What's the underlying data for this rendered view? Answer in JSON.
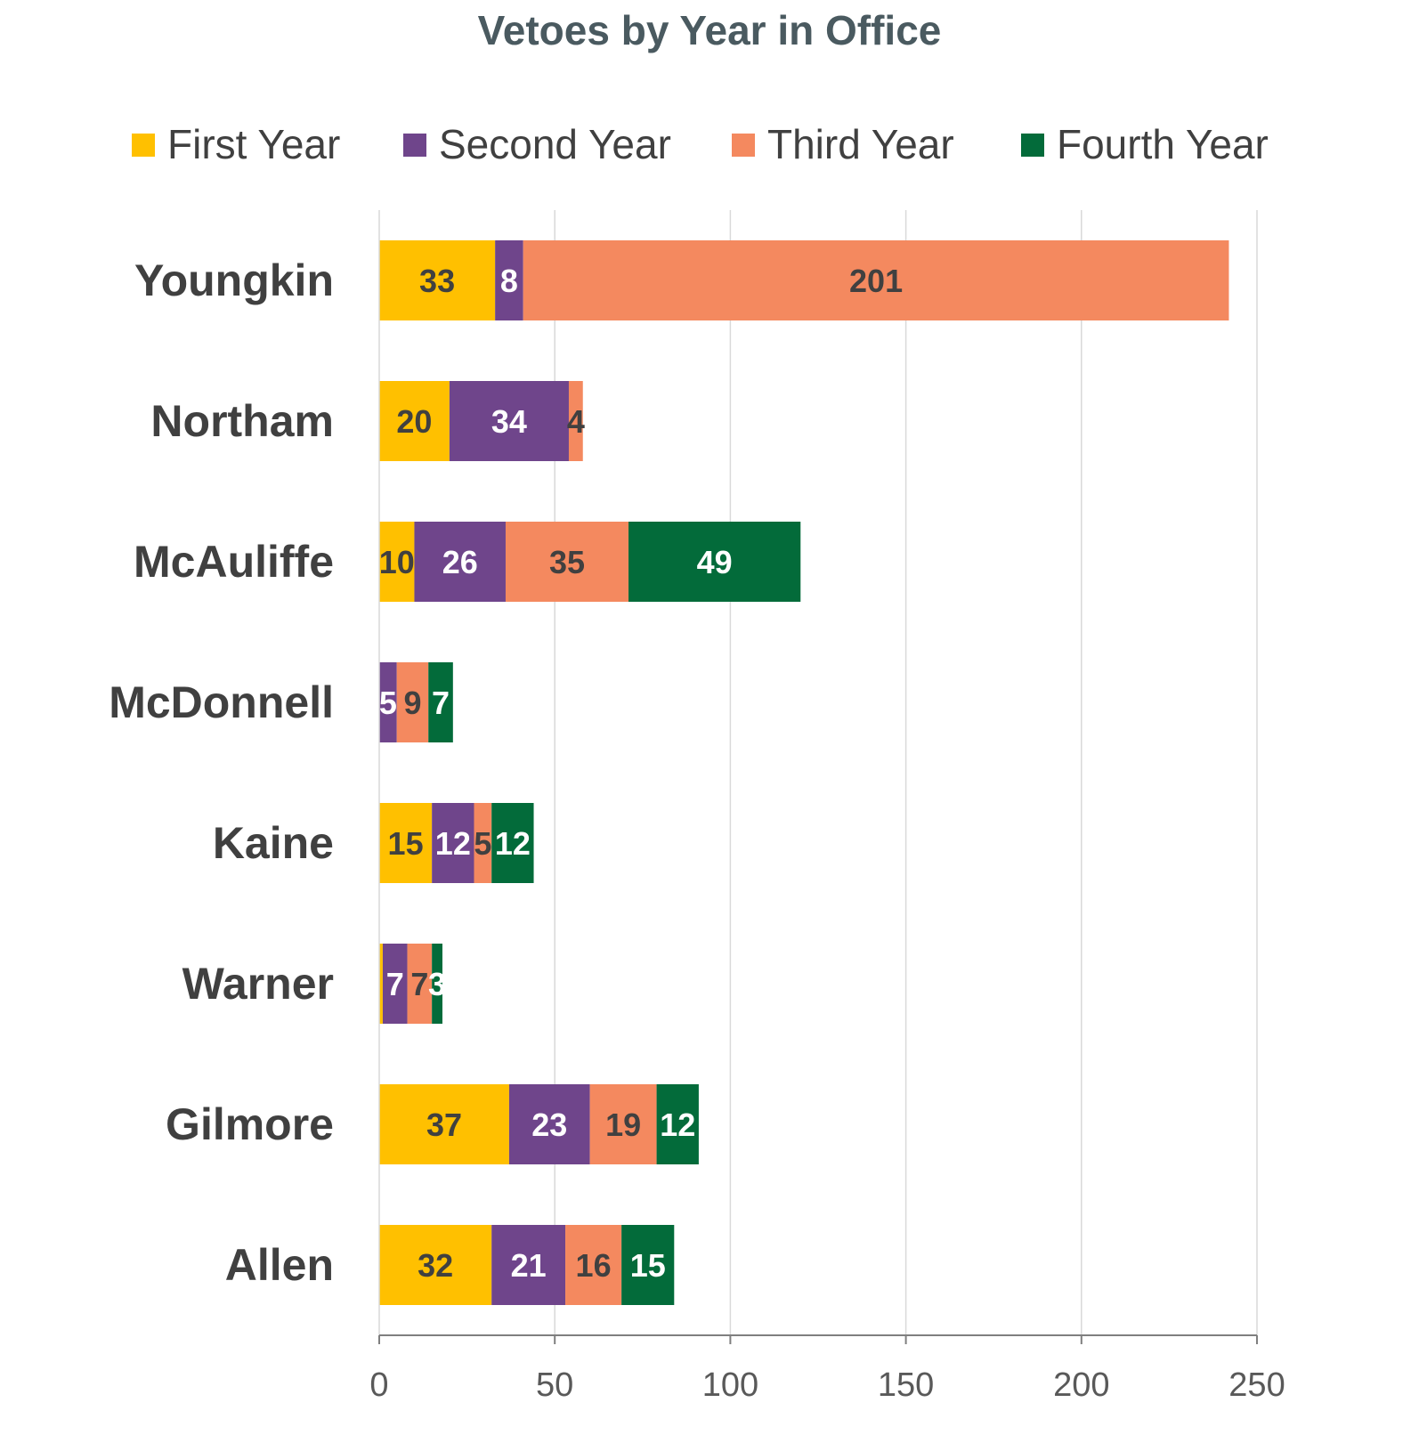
{
  "chart_data": {
    "type": "bar",
    "orientation": "horizontal",
    "stacked": true,
    "title": "Vetoes by Year in Office",
    "categories": [
      "Youngkin",
      "Northam",
      "McAuliffe",
      "McDonnell",
      "Kaine",
      "Warner",
      "Gilmore",
      "Allen"
    ],
    "series": [
      {
        "name": "First Year",
        "color": "#FFC000",
        "label_color": "#404040",
        "values": [
          33,
          20,
          10,
          0,
          15,
          1,
          37,
          32
        ]
      },
      {
        "name": "Second Year",
        "color": "#6F458B",
        "label_color": "#FFFFFF",
        "values": [
          8,
          34,
          26,
          5,
          12,
          7,
          23,
          21
        ]
      },
      {
        "name": "Third Year",
        "color": "#F4895F",
        "label_color": "#404040",
        "values": [
          201,
          4,
          35,
          9,
          5,
          7,
          19,
          16
        ]
      },
      {
        "name": "Fourth Year",
        "color": "#036B3A",
        "label_color": "#FFFFFF",
        "values": [
          0,
          0,
          49,
          7,
          12,
          3,
          12,
          15
        ]
      }
    ],
    "xlim": [
      0,
      250
    ],
    "xticks": [
      0,
      50,
      100,
      150,
      200,
      250
    ],
    "grid": true,
    "legend_position": "top"
  }
}
